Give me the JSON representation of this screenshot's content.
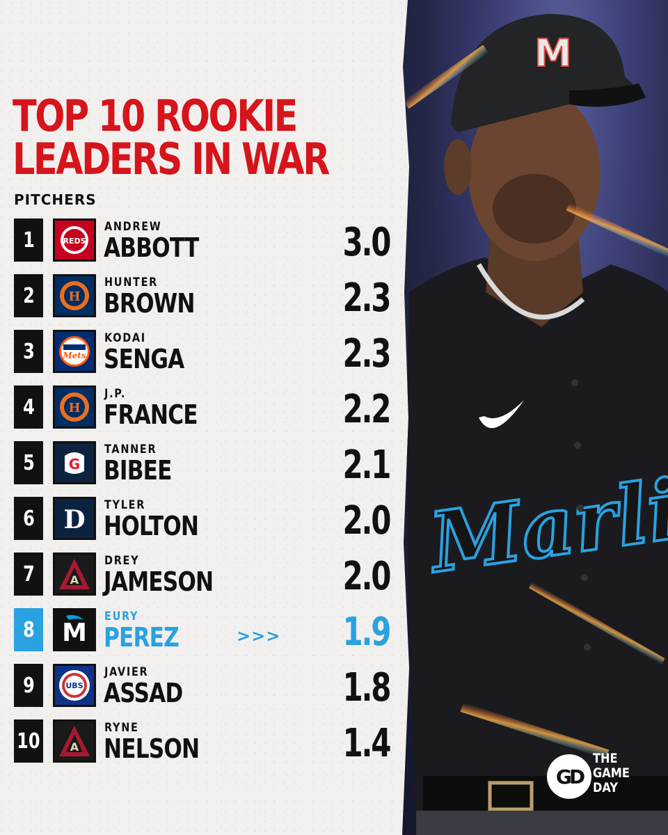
{
  "title_lines": [
    "TOP 10 ROOKIE",
    "LEADERS IN WAR"
  ],
  "subtitle": "PITCHERS",
  "accent_color": "#d6141b",
  "highlight_color": "#2aa1e0",
  "rows": [
    {
      "rank": "1",
      "first": "ANDREW",
      "last": "ABBOTT",
      "war": "3.0",
      "team_logo": "reds-logo"
    },
    {
      "rank": "2",
      "first": "HUNTER",
      "last": "BROWN",
      "war": "2.3",
      "team_logo": "astros-logo"
    },
    {
      "rank": "3",
      "first": "KODAI",
      "last": "SENGA",
      "war": "2.3",
      "team_logo": "mets-logo"
    },
    {
      "rank": "4",
      "first": "J.P.",
      "last": "FRANCE",
      "war": "2.2",
      "team_logo": "astros-logo"
    },
    {
      "rank": "5",
      "first": "TANNER",
      "last": "BIBEE",
      "war": "2.1",
      "team_logo": "guardians-logo"
    },
    {
      "rank": "6",
      "first": "TYLER",
      "last": "HOLTON",
      "war": "2.0",
      "team_logo": "tigers-logo"
    },
    {
      "rank": "7",
      "first": "DREY",
      "last": "JAMESON",
      "war": "2.0",
      "team_logo": "diamondbacks-logo"
    },
    {
      "rank": "8",
      "first": "EURY",
      "last": "PEREZ",
      "war": "1.9",
      "team_logo": "marlins-logo",
      "highlight": true
    },
    {
      "rank": "9",
      "first": "JAVIER",
      "last": "ASSAD",
      "war": "1.8",
      "team_logo": "cubs-logo"
    },
    {
      "rank": "10",
      "first": "RYNE",
      "last": "NELSON",
      "war": "1.4",
      "team_logo": "diamondbacks-logo"
    }
  ],
  "highlight_marker": ">>>",
  "photo": {
    "jersey_text": "Marlins",
    "cap_letter": "M"
  },
  "brand": {
    "mark": "GD",
    "lines": [
      "THE",
      "GAME",
      "DAY"
    ]
  }
}
